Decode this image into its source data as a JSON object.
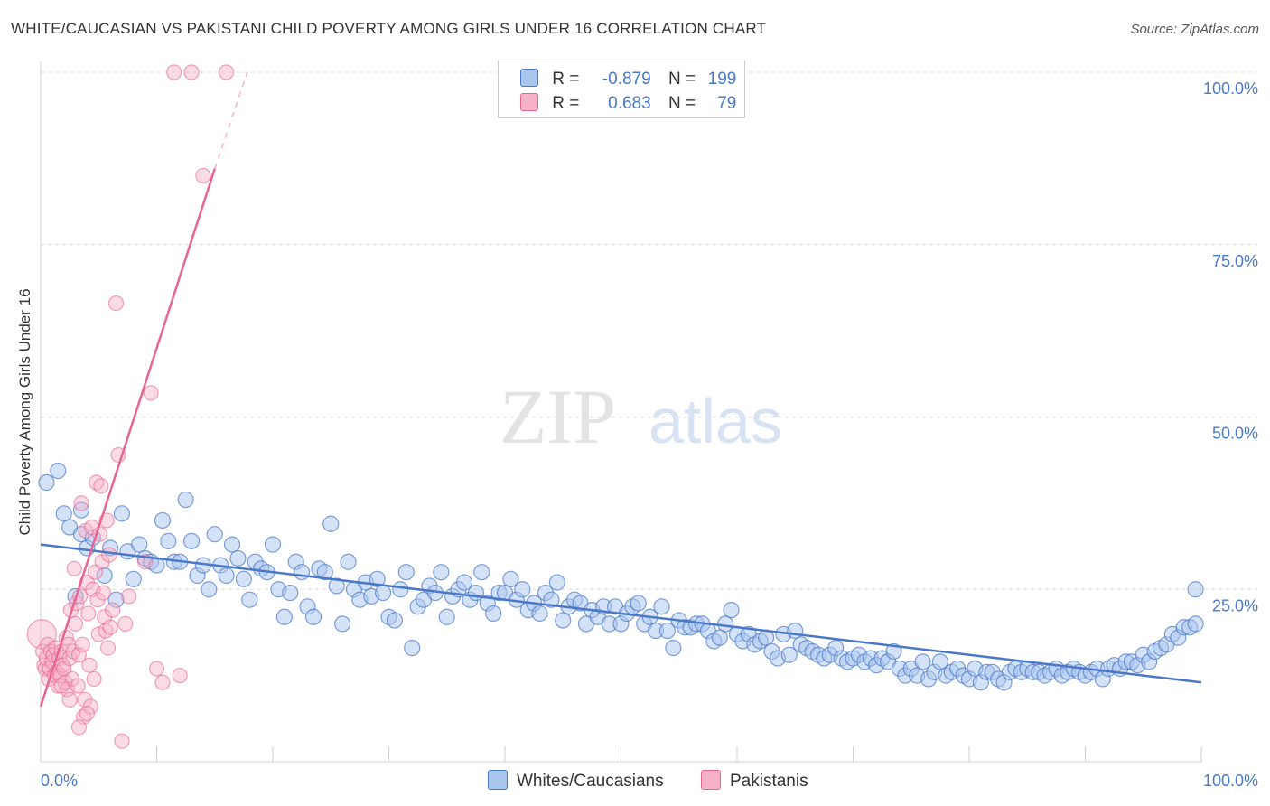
{
  "header": {
    "title": "WHITE/CAUCASIAN VS PAKISTANI CHILD POVERTY AMONG GIRLS UNDER 16 CORRELATION CHART",
    "source": "Source: ZipAtlas.com"
  },
  "legend": {
    "row1": {
      "r_label": "R =",
      "r_value": "-0.879",
      "n_label": "N =",
      "n_value": "199"
    },
    "row2": {
      "r_label": "R =",
      "r_value": "0.683",
      "n_label": "N =",
      "n_value": "79"
    }
  },
  "bottom_legend": {
    "white": "Whites/Caucasians",
    "pakistani": "Pakistanis"
  },
  "watermark": {
    "zip": "ZIP",
    "atlas": "atlas"
  },
  "colors": {
    "blue": "#4a78c8",
    "blue_fill": "#a9c6ef",
    "pink": "#e86592",
    "pink_fill": "#f6b2c8"
  },
  "chart_data": {
    "type": "scatter",
    "title": "WHITE/CAUCASIAN VS PAKISTANI CHILD POVERTY AMONG GIRLS UNDER 16 CORRELATION CHART",
    "xlabel": "",
    "ylabel": "Child Poverty Among Girls Under 16",
    "xlim": [
      0,
      100
    ],
    "ylim": [
      0,
      100
    ],
    "x_tick_labels": [
      "0.0%",
      "100.0%"
    ],
    "y_tick_labels": [
      "25.0%",
      "50.0%",
      "75.0%",
      "100.0%"
    ],
    "y_ticks": [
      25,
      50,
      75,
      100
    ],
    "grid": true,
    "series": [
      {
        "name": "Whites/Caucasians",
        "r": -0.879,
        "n": 199,
        "trend": {
          "x": [
            0,
            100
          ],
          "y": [
            31.5,
            11.5
          ]
        },
        "points": [
          [
            0.5,
            40.5
          ],
          [
            1.5,
            42.2
          ],
          [
            2,
            36
          ],
          [
            2.5,
            34
          ],
          [
            3,
            24
          ],
          [
            3.5,
            36.5
          ],
          [
            3.5,
            33
          ],
          [
            4,
            31
          ],
          [
            4.5,
            32.5
          ],
          [
            5.5,
            27
          ],
          [
            6,
            31
          ],
          [
            6.5,
            23.5
          ],
          [
            7,
            36
          ],
          [
            7.5,
            30.5
          ],
          [
            8,
            26.5
          ],
          [
            8.5,
            31.5
          ],
          [
            9,
            29.5
          ],
          [
            9.5,
            29
          ],
          [
            10,
            28.5
          ],
          [
            10.5,
            35
          ],
          [
            11,
            32
          ],
          [
            11.5,
            29
          ],
          [
            12,
            29
          ],
          [
            12.5,
            38
          ],
          [
            13,
            32
          ],
          [
            13.5,
            27
          ],
          [
            14,
            28.5
          ],
          [
            14.5,
            25
          ],
          [
            15,
            33
          ],
          [
            15.5,
            28.5
          ],
          [
            16,
            27
          ],
          [
            16.5,
            31.5
          ],
          [
            17,
            29.5
          ],
          [
            17.5,
            26.5
          ],
          [
            18,
            23.5
          ],
          [
            18.5,
            29
          ],
          [
            19,
            28
          ],
          [
            19.5,
            27.5
          ],
          [
            20,
            31.5
          ],
          [
            20.5,
            25
          ],
          [
            21,
            21
          ],
          [
            21.5,
            24.5
          ],
          [
            22,
            29
          ],
          [
            22.5,
            27.5
          ],
          [
            23,
            22.5
          ],
          [
            23.5,
            21
          ],
          [
            24,
            28
          ],
          [
            24.5,
            27.5
          ],
          [
            25,
            34.5
          ],
          [
            25.5,
            25.5
          ],
          [
            26,
            20
          ],
          [
            26.5,
            29
          ],
          [
            27,
            25
          ],
          [
            27.5,
            23.5
          ],
          [
            28,
            26
          ],
          [
            28.5,
            24
          ],
          [
            29,
            26.5
          ],
          [
            29.5,
            24.5
          ],
          [
            30,
            21
          ],
          [
            30.5,
            20.5
          ],
          [
            31,
            25
          ],
          [
            31.5,
            27.5
          ],
          [
            32,
            16.5
          ],
          [
            32.5,
            22.5
          ],
          [
            33,
            23.5
          ],
          [
            33.5,
            25.5
          ],
          [
            34,
            24.5
          ],
          [
            34.5,
            27.5
          ],
          [
            35,
            21
          ],
          [
            35.5,
            24
          ],
          [
            36,
            25
          ],
          [
            36.5,
            26
          ],
          [
            37,
            23.5
          ],
          [
            37.5,
            24.5
          ],
          [
            38,
            27.5
          ],
          [
            38.5,
            23
          ],
          [
            39,
            21.5
          ],
          [
            39.5,
            24.5
          ],
          [
            40,
            24.5
          ],
          [
            40.5,
            26.5
          ],
          [
            41,
            23.5
          ],
          [
            41.5,
            25
          ],
          [
            42,
            22
          ],
          [
            42.5,
            23
          ],
          [
            43,
            21.5
          ],
          [
            43.5,
            24.5
          ],
          [
            44,
            23.5
          ],
          [
            44.5,
            26
          ],
          [
            45,
            20.5
          ],
          [
            45.5,
            22.5
          ],
          [
            46,
            23.5
          ],
          [
            46.5,
            23
          ],
          [
            47,
            20
          ],
          [
            47.5,
            22
          ],
          [
            48,
            21
          ],
          [
            48.5,
            22.5
          ],
          [
            49,
            20
          ],
          [
            49.5,
            22.5
          ],
          [
            50,
            20
          ],
          [
            50.5,
            21.5
          ],
          [
            51,
            22.5
          ],
          [
            51.5,
            23
          ],
          [
            52,
            20
          ],
          [
            52.5,
            21
          ],
          [
            53,
            19
          ],
          [
            53.5,
            22.5
          ],
          [
            54,
            19
          ],
          [
            54.5,
            16.5
          ],
          [
            55,
            20.5
          ],
          [
            55.5,
            19.5
          ],
          [
            56,
            19.5
          ],
          [
            56.5,
            20
          ],
          [
            57,
            20
          ],
          [
            57.5,
            19
          ],
          [
            58,
            17.5
          ],
          [
            58.5,
            18
          ],
          [
            59,
            20
          ],
          [
            59.5,
            22
          ],
          [
            60,
            18.5
          ],
          [
            60.5,
            17.5
          ],
          [
            61,
            18.5
          ],
          [
            61.5,
            17
          ],
          [
            62,
            17.5
          ],
          [
            62.5,
            18
          ],
          [
            63,
            16
          ],
          [
            63.5,
            15
          ],
          [
            64,
            18.5
          ],
          [
            64.5,
            15.5
          ],
          [
            65,
            19
          ],
          [
            65.5,
            17
          ],
          [
            66,
            16.5
          ],
          [
            66.5,
            16
          ],
          [
            67,
            15.5
          ],
          [
            67.5,
            15
          ],
          [
            68,
            15.5
          ],
          [
            68.5,
            16.5
          ],
          [
            69,
            15
          ],
          [
            69.5,
            14.5
          ],
          [
            70,
            15
          ],
          [
            70.5,
            15.5
          ],
          [
            71,
            14.5
          ],
          [
            71.5,
            15
          ],
          [
            72,
            14
          ],
          [
            72.5,
            15
          ],
          [
            73,
            14.5
          ],
          [
            73.5,
            16
          ],
          [
            74,
            13.5
          ],
          [
            74.5,
            12.5
          ],
          [
            75,
            13.5
          ],
          [
            75.5,
            12.5
          ],
          [
            76,
            14.5
          ],
          [
            76.5,
            12
          ],
          [
            77,
            13
          ],
          [
            77.5,
            14.5
          ],
          [
            78,
            12.5
          ],
          [
            78.5,
            13
          ],
          [
            79,
            13.5
          ],
          [
            79.5,
            12.5
          ],
          [
            80,
            12
          ],
          [
            80.5,
            13.5
          ],
          [
            81,
            11.5
          ],
          [
            81.5,
            13
          ],
          [
            82,
            13
          ],
          [
            82.5,
            12
          ],
          [
            83,
            11.5
          ],
          [
            83.5,
            13
          ],
          [
            84,
            13.5
          ],
          [
            84.5,
            13
          ],
          [
            85,
            13.5
          ],
          [
            85.5,
            13
          ],
          [
            86,
            13
          ],
          [
            86.5,
            12.5
          ],
          [
            87,
            13
          ],
          [
            87.5,
            13.5
          ],
          [
            88,
            12.5
          ],
          [
            88.5,
            13
          ],
          [
            89,
            13.5
          ],
          [
            89.5,
            13
          ],
          [
            90,
            12.5
          ],
          [
            90.5,
            13
          ],
          [
            91,
            13.5
          ],
          [
            91.5,
            12
          ],
          [
            92,
            13.5
          ],
          [
            92.5,
            14
          ],
          [
            93,
            13.5
          ],
          [
            93.5,
            14.5
          ],
          [
            94,
            14.5
          ],
          [
            94.5,
            14
          ],
          [
            95,
            15.5
          ],
          [
            95.5,
            14.5
          ],
          [
            96,
            16
          ],
          [
            96.5,
            16.5
          ],
          [
            97,
            17
          ],
          [
            97.5,
            18.5
          ],
          [
            98,
            18
          ],
          [
            98.5,
            19.5
          ],
          [
            99,
            19.5
          ],
          [
            99.5,
            20
          ],
          [
            99.5,
            25
          ]
        ]
      },
      {
        "name": "Pakistanis",
        "r": 0.683,
        "n": 79,
        "trend": {
          "x": [
            0,
            15
          ],
          "y": [
            8,
            86
          ],
          "dashed_to": {
            "x": 17.8,
            "y": 100
          }
        },
        "points": [
          [
            0.1,
            18.5
          ],
          [
            0.2,
            16
          ],
          [
            0.3,
            14
          ],
          [
            0.4,
            13.5
          ],
          [
            0.5,
            15
          ],
          [
            0.6,
            17
          ],
          [
            0.7,
            12
          ],
          [
            0.8,
            13.5
          ],
          [
            0.9,
            16
          ],
          [
            1,
            14.5
          ],
          [
            1.1,
            15.5
          ],
          [
            1.2,
            12.5
          ],
          [
            1.3,
            16.5
          ],
          [
            1.4,
            13
          ],
          [
            1.5,
            11
          ],
          [
            1.6,
            15
          ],
          [
            1.7,
            12.5
          ],
          [
            1.8,
            16
          ],
          [
            1.9,
            14
          ],
          [
            2,
            13.5
          ],
          [
            2.1,
            11.5
          ],
          [
            2.2,
            18
          ],
          [
            2.3,
            10.5
          ],
          [
            2.4,
            17
          ],
          [
            2.5,
            15
          ],
          [
            2.6,
            22
          ],
          [
            2.7,
            12
          ],
          [
            2.8,
            16
          ],
          [
            2.9,
            28
          ],
          [
            3,
            20
          ],
          [
            3.1,
            23
          ],
          [
            3.2,
            11
          ],
          [
            3.3,
            15.5
          ],
          [
            3.4,
            24
          ],
          [
            3.5,
            37.5
          ],
          [
            3.6,
            17
          ],
          [
            3.7,
            6.5
          ],
          [
            3.8,
            9
          ],
          [
            3.9,
            33.5
          ],
          [
            4,
            26
          ],
          [
            4.1,
            21.5
          ],
          [
            4.2,
            14
          ],
          [
            4.3,
            8
          ],
          [
            4.4,
            34
          ],
          [
            4.5,
            25
          ],
          [
            4.6,
            12
          ],
          [
            4.7,
            27.5
          ],
          [
            4.8,
            40.5
          ],
          [
            4.9,
            23.5
          ],
          [
            5,
            18.5
          ],
          [
            5.1,
            33
          ],
          [
            5.2,
            40
          ],
          [
            5.3,
            29
          ],
          [
            5.4,
            24.5
          ],
          [
            5.5,
            21
          ],
          [
            5.6,
            19
          ],
          [
            5.7,
            35
          ],
          [
            5.8,
            16.5
          ],
          [
            5.9,
            30
          ],
          [
            6,
            19.5
          ],
          [
            6.2,
            22
          ],
          [
            6.5,
            66.5
          ],
          [
            6.7,
            44.5
          ],
          [
            7,
            3
          ],
          [
            7.3,
            20
          ],
          [
            7.6,
            24
          ],
          [
            9,
            29
          ],
          [
            9.5,
            53.5
          ],
          [
            10,
            13.5
          ],
          [
            10.5,
            11.5
          ],
          [
            11.5,
            100
          ],
          [
            12,
            12.5
          ],
          [
            13,
            100
          ],
          [
            14,
            85
          ],
          [
            16,
            100
          ],
          [
            3.3,
            5
          ],
          [
            4,
            7
          ],
          [
            2.5,
            9
          ],
          [
            1.8,
            11
          ]
        ]
      }
    ]
  }
}
